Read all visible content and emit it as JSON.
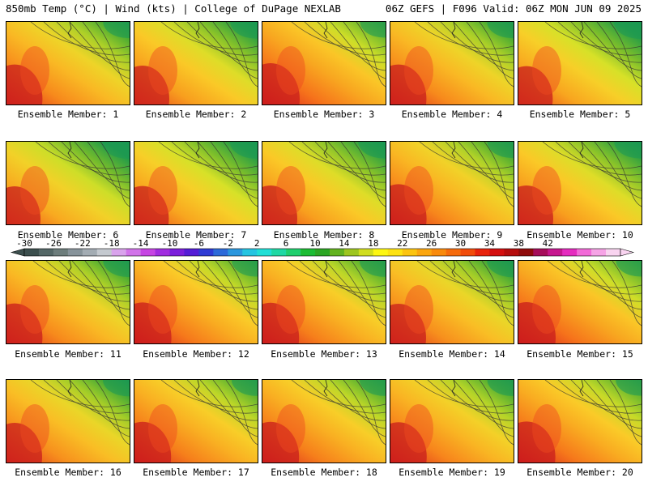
{
  "header": {
    "left": "850mb Temp (°C) | Wind (kts) | College of DuPage NEXLAB",
    "right": "06Z GEFS | F096 Valid: 06Z MON JUN 09 2025"
  },
  "member_caption_prefix": "Ensemble Member: ",
  "members": [
    {
      "number": "1",
      "warmth": 0.62
    },
    {
      "number": "2",
      "warmth": 0.55
    },
    {
      "number": "3",
      "warmth": 0.7
    },
    {
      "number": "4",
      "warmth": 0.62
    },
    {
      "number": "5",
      "warmth": 0.52
    },
    {
      "number": "6",
      "warmth": 0.5
    },
    {
      "number": "7",
      "warmth": 0.52
    },
    {
      "number": "8",
      "warmth": 0.55
    },
    {
      "number": "9",
      "warmth": 0.63
    },
    {
      "number": "10",
      "warmth": 0.55
    },
    {
      "number": "11",
      "warmth": 0.62
    },
    {
      "number": "12",
      "warmth": 0.68
    },
    {
      "number": "13",
      "warmth": 0.66
    },
    {
      "number": "14",
      "warmth": 0.6
    },
    {
      "number": "15",
      "warmth": 0.7
    },
    {
      "number": "16",
      "warmth": 0.6
    },
    {
      "number": "17",
      "warmth": 0.66
    },
    {
      "number": "18",
      "warmth": 0.66
    },
    {
      "number": "19",
      "warmth": 0.64
    },
    {
      "number": "20",
      "warmth": 0.68
    }
  ],
  "colorbar": {
    "labels": [
      "-30",
      "-26",
      "-22",
      "-18",
      "-14",
      "-10",
      "-6",
      "-2",
      "2",
      "6",
      "10",
      "14",
      "18",
      "22",
      "26",
      "30",
      "34",
      "38",
      "42"
    ],
    "colors": [
      "#3c4f4e",
      "#546766",
      "#6d7d7c",
      "#87939a",
      "#a3acb3",
      "#c4c9cf",
      "#d9a3ec",
      "#d173e9",
      "#c645e3",
      "#a12de0",
      "#7b1edb",
      "#541cd6",
      "#2f3bd4",
      "#2d6ad9",
      "#2b97de",
      "#24c4e1",
      "#20dfd6",
      "#1fd8a4",
      "#1fcf6e",
      "#1cbc33",
      "#2ca623",
      "#62b21e",
      "#9dc51e",
      "#d0dd1e",
      "#fdf712",
      "#fde211",
      "#fcc40f",
      "#fba60e",
      "#f98a0c",
      "#f66b0c",
      "#f14c0b",
      "#e8230c",
      "#d40f0f",
      "#b50d0d",
      "#8f0b0b",
      "#a50d5a",
      "#c6178f",
      "#e52cbf",
      "#f26ad8",
      "#f6a3e6",
      "#f9d4f0"
    ]
  }
}
